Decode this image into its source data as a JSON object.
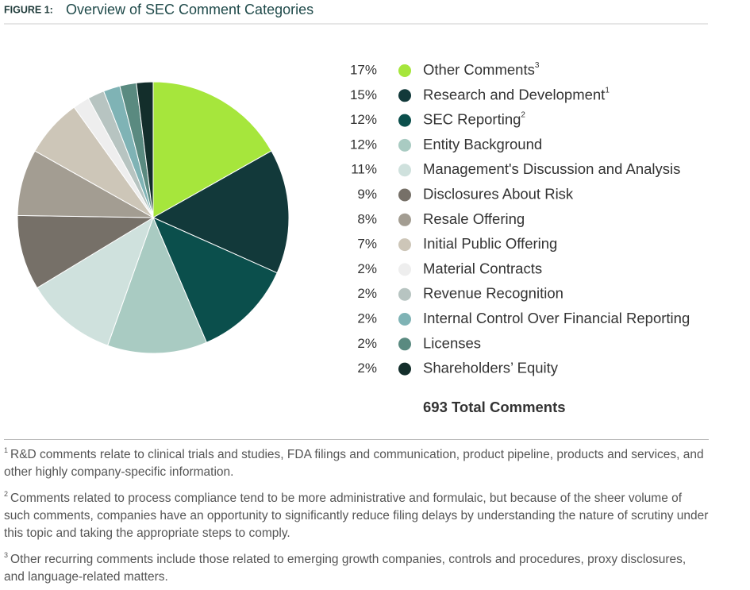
{
  "chart_data": {
    "type": "pie",
    "figure_label": "FIGURE 1:",
    "title": "Overview of SEC Comment Categories",
    "categories": [
      "Other Comments",
      "Research and Development",
      "SEC Reporting",
      "Entity Background",
      "Management's Discussion and Analysis",
      "Disclosures About Risk",
      "Resale Offering",
      "Initial Public Offering",
      "Material Contracts",
      "Revenue Recognition",
      "Internal Control Over Financial Reporting",
      "Licenses",
      "Shareholders’ Equity"
    ],
    "category_notes": [
      "3",
      "1",
      "2",
      null,
      null,
      null,
      null,
      null,
      null,
      null,
      null,
      null,
      null
    ],
    "values": [
      17,
      15,
      12,
      12,
      11,
      9,
      8,
      7,
      2,
      2,
      2,
      2,
      2
    ],
    "value_labels": [
      "17%",
      "15%",
      "12%",
      "12%",
      "11%",
      "9%",
      "8%",
      "7%",
      "2%",
      "2%",
      "2%",
      "2%",
      "2%"
    ],
    "colors": [
      "#a6e63c",
      "#12393a",
      "#0b4f4c",
      "#a9cbc2",
      "#cfe1dd",
      "#767068",
      "#a39d92",
      "#cdc6b8",
      "#eeeeee",
      "#b7c4c1",
      "#7fb3b5",
      "#5a8a80",
      "#132e2b"
    ],
    "total_label": "693 Total Comments",
    "footnotes": [
      {
        "marker": "1",
        "text": "R&D comments relate to clinical trials and studies, FDA filings and communication, product pipeline, products and services, and other highly company-specific information."
      },
      {
        "marker": "2",
        "text": "Comments related to process compliance tend to be more administrative and formulaic, but because of the sheer volume of such comments, companies have an opportunity to significantly reduce filing delays by understanding the nature of scrutiny under this topic and taking the appropriate steps to comply."
      },
      {
        "marker": "3",
        "text": "Other recurring comments include those related to emerging growth companies, controls and procedures, proxy disclosures, and language-related matters."
      }
    ]
  }
}
